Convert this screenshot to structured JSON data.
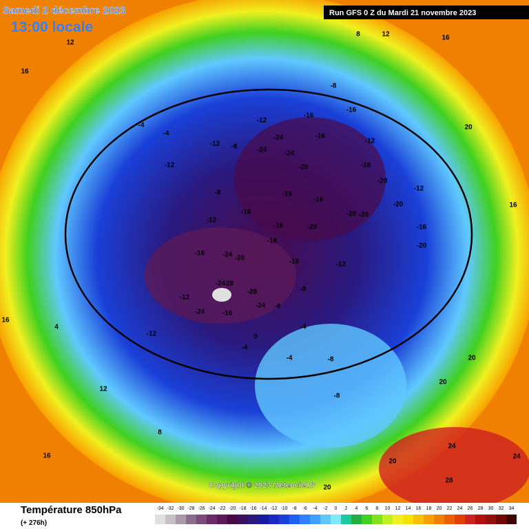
{
  "header": {
    "valid_date": "Samedi 2 décembre 2023",
    "local_time": "13:00 locale",
    "run": "Run GFS 0 Z du Mardi 21 novembre 2023"
  },
  "map": {
    "contour_labels": [
      -16,
      -16,
      -12,
      -24,
      -24,
      -24,
      -16,
      -20,
      -16,
      -16,
      -20,
      -20,
      -16,
      -16,
      -20,
      -16,
      -12,
      -16,
      -24,
      -20,
      -24,
      -28,
      -28,
      -24,
      -16,
      -24,
      -12,
      -12,
      -8,
      -8,
      -12,
      -16,
      -8,
      -12,
      -16,
      -20,
      -12,
      -20,
      -16,
      -20,
      -8,
      -8,
      -4,
      -4,
      0,
      -4,
      4,
      8,
      12,
      12,
      16,
      16,
      16,
      20,
      20,
      20,
      24,
      24,
      28,
      20,
      12,
      16,
      20,
      16,
      8,
      -4,
      -8,
      -12,
      -12,
      -8,
      -4
    ],
    "copyright": "Copyright © 2023 Meteociel.fr"
  },
  "legend": {
    "title": "Température 850hPa",
    "lead_time": "(+ 276h)",
    "scale": {
      "ticks": [
        -34,
        -32,
        -30,
        -28,
        -26,
        -24,
        -22,
        -20,
        -18,
        -16,
        -14,
        -12,
        -10,
        -8,
        -6,
        -4,
        -2,
        0,
        2,
        4,
        6,
        8,
        10,
        12,
        14,
        16,
        18,
        20,
        22,
        24,
        26,
        28,
        30,
        32,
        34
      ],
      "colors": [
        "#e0e0e0",
        "#c8c0c8",
        "#a898a8",
        "#8c6c8c",
        "#7a4a7a",
        "#6a2a6a",
        "#5a1a5a",
        "#4a0a4a",
        "#3a1060",
        "#2a1a80",
        "#1a1aa0",
        "#1a2ac0",
        "#1a40d8",
        "#2060f0",
        "#3080ff",
        "#40a0ff",
        "#60c8ff",
        "#80e8ff",
        "#20c8a0",
        "#20b040",
        "#40d020",
        "#80e020",
        "#c0f020",
        "#f0f020",
        "#f8e000",
        "#f8c000",
        "#f8a000",
        "#f08000",
        "#e86000",
        "#e04000",
        "#d02020",
        "#b01010",
        "#901010",
        "#700808",
        "#400404"
      ]
    }
  }
}
